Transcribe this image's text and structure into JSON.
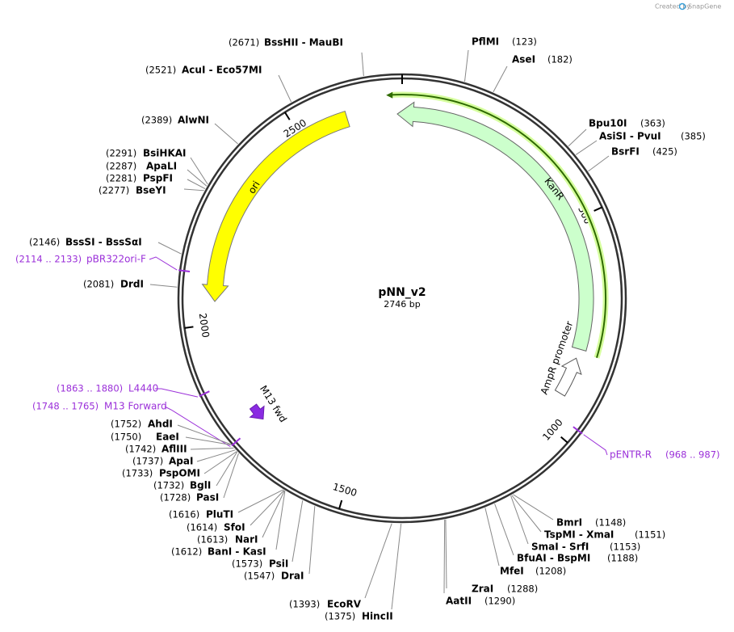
{
  "credit": {
    "prefix": "Created by",
    "brand": "SnapGene"
  },
  "plasmid": {
    "name": "pNN_v2",
    "length": "2746 bp"
  },
  "ticks": [
    "500",
    "1000",
    "1500",
    "2000",
    "2500"
  ],
  "features": [
    {
      "label": "ori"
    },
    {
      "label": "KanR"
    },
    {
      "label": "AmpR promoter"
    },
    {
      "label": "M13 fwd"
    }
  ],
  "primers": [
    {
      "label": "pBR322ori-F",
      "range": "(2114 .. 2133)"
    },
    {
      "label": "L4440",
      "range": "(1863 .. 1880)"
    },
    {
      "label": "M13 Forward",
      "range": "(1748 .. 1765)"
    },
    {
      "label": "pENTR-R",
      "range": "(968 .. 987)"
    }
  ],
  "sites": [
    {
      "label": "BssHII  - MauBI",
      "position": "(2671)"
    },
    {
      "label": "AcuI  - Eco57MI",
      "position": "(2521)"
    },
    {
      "label": "AlwNI",
      "position": "(2389)"
    },
    {
      "label": "BsiHKAI",
      "position": "(2291)"
    },
    {
      "label": "ApaLI",
      "position": "(2287)"
    },
    {
      "label": "PspFI",
      "position": "(2281)"
    },
    {
      "label": "BseYI",
      "position": "(2277)"
    },
    {
      "label": "BssSI  - BssSαI",
      "position": "(2146)"
    },
    {
      "label": "DrdI",
      "position": "(2081)"
    },
    {
      "label": "AhdI",
      "position": "(1752)"
    },
    {
      "label": "EaeI",
      "position": "(1750)"
    },
    {
      "label": "AflIII",
      "position": "(1742)"
    },
    {
      "label": "ApaI",
      "position": "(1737)"
    },
    {
      "label": "PspOMI",
      "position": "(1733)"
    },
    {
      "label": "BglI",
      "position": "(1732)"
    },
    {
      "label": "PasI",
      "position": "(1728)"
    },
    {
      "label": "PluTI",
      "position": "(1616)"
    },
    {
      "label": "SfoI",
      "position": "(1614)"
    },
    {
      "label": "NarI",
      "position": "(1613)"
    },
    {
      "label": "BanI  - KasI",
      "position": "(1612)"
    },
    {
      "label": "PsiI",
      "position": "(1573)"
    },
    {
      "label": "DraI",
      "position": "(1547)"
    },
    {
      "label": "EcoRV",
      "position": "(1393)"
    },
    {
      "label": "HincII",
      "position": "(1375)"
    },
    {
      "label": "PflMI",
      "position": "(123)"
    },
    {
      "label": "AseI",
      "position": "(182)"
    },
    {
      "label": "Bpu10I",
      "position": "(363)"
    },
    {
      "label": "AsiSI  - PvuI",
      "position": "(385)"
    },
    {
      "label": "BsrFI",
      "position": "(425)"
    },
    {
      "label": "BmrI",
      "position": "(1148)"
    },
    {
      "label": "TspMI  - XmaI",
      "position": "(1151)"
    },
    {
      "label": "SmaI  - SrfI",
      "position": "(1153)"
    },
    {
      "label": "BfuAI  - BspMI",
      "position": "(1188)"
    },
    {
      "label": "MfeI",
      "position": "(1208)"
    },
    {
      "label": "ZraI",
      "position": "(1288)"
    },
    {
      "label": "AatII",
      "position": "(1290)"
    }
  ]
}
